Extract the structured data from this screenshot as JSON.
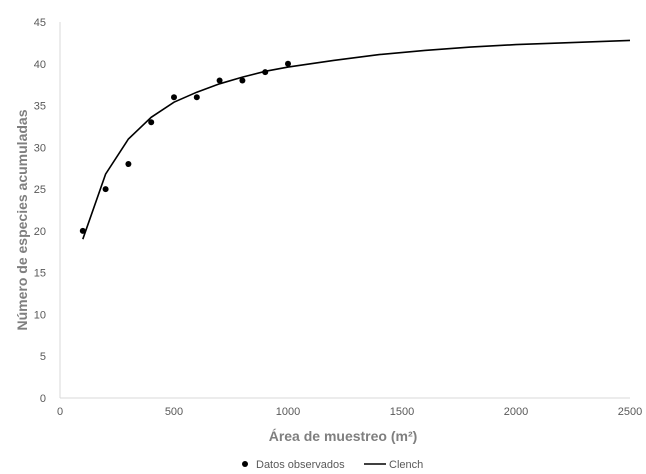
{
  "chart_data": {
    "type": "scatter",
    "title": "",
    "xlabel": "Área de muestreo (m²)",
    "ylabel": "Número de especies acumuladas",
    "xlim": [
      0,
      2500
    ],
    "ylim": [
      0,
      45
    ],
    "x_ticks": [
      0,
      500,
      1000,
      1500,
      2000,
      2500
    ],
    "y_ticks": [
      0,
      5,
      10,
      15,
      20,
      25,
      30,
      35,
      40,
      45
    ],
    "grid": false,
    "legend_position": "bottom",
    "series": [
      {
        "name": "Datos observados",
        "type": "scatter",
        "color": "#000000",
        "x": [
          100,
          200,
          300,
          400,
          500,
          600,
          700,
          800,
          900,
          1000
        ],
        "y": [
          20,
          25,
          28,
          33,
          36,
          36,
          38,
          38,
          39,
          40
        ]
      },
      {
        "name": "Clench",
        "type": "line",
        "color": "#000000",
        "x": [
          100,
          200,
          300,
          400,
          500,
          600,
          700,
          800,
          900,
          1000,
          1200,
          1400,
          1600,
          1800,
          2000,
          2200,
          2500
        ],
        "y": [
          19,
          26.8,
          31,
          33.6,
          35.4,
          36.6,
          37.6,
          38.4,
          39.1,
          39.6,
          40.4,
          41.1,
          41.6,
          42.0,
          42.3,
          42.5,
          42.8
        ]
      }
    ]
  }
}
